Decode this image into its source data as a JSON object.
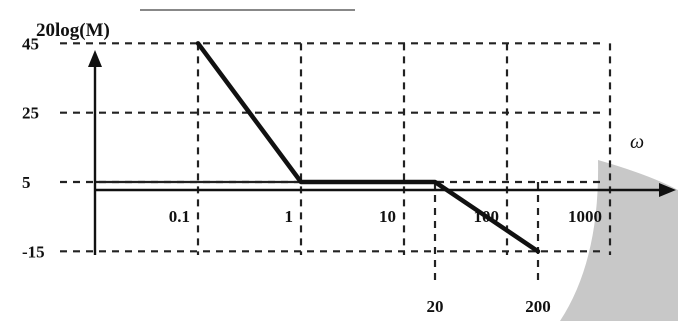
{
  "chart_data": {
    "type": "line",
    "ylabel": "20log(M)",
    "xlabel": "ω",
    "x_scale": "log",
    "y_ticks": [
      45,
      25,
      5,
      -15
    ],
    "x_ticks": [
      "0.1",
      "1",
      "10",
      "100",
      "1000"
    ],
    "x_below_ticks": [
      "20",
      "200"
    ],
    "series": [
      {
        "x": [
          0.1,
          1,
          20,
          200
        ],
        "y": [
          45,
          5,
          5,
          -15
        ]
      }
    ],
    "grid": true
  }
}
